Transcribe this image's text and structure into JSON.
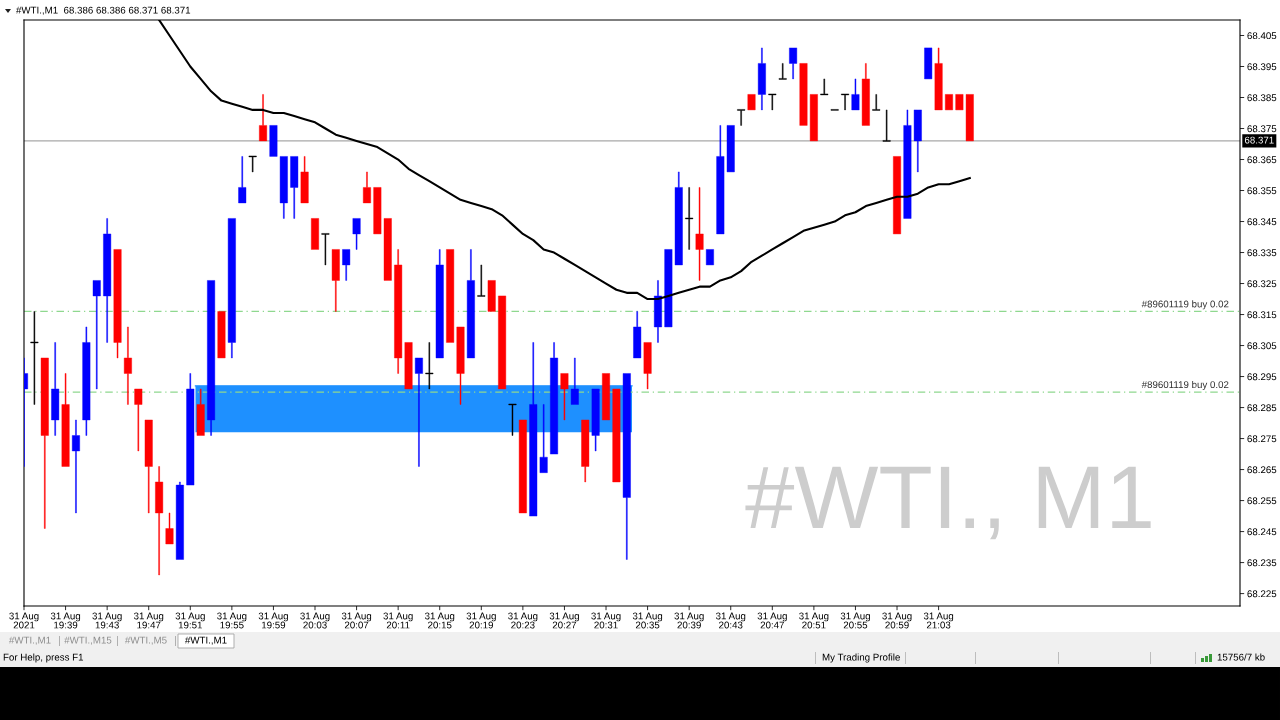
{
  "chart_data": {
    "type": "candlestick",
    "title": "#WTI.,M1  68.386 68.386 68.371 68.371",
    "x": [
      "2021-08-31T19:35",
      "2021-08-31T19:36",
      "2021-08-31T19:37",
      "2021-08-31T19:38",
      "2021-08-31T19:39",
      "2021-08-31T19:40",
      "2021-08-31T19:41",
      "2021-08-31T19:42",
      "2021-08-31T19:43",
      "2021-08-31T19:44",
      "2021-08-31T19:45",
      "2021-08-31T19:46",
      "2021-08-31T19:47",
      "2021-08-31T19:48",
      "2021-08-31T19:49",
      "2021-08-31T19:50",
      "2021-08-31T19:51",
      "2021-08-31T19:52",
      "2021-08-31T19:53",
      "2021-08-31T19:54",
      "2021-08-31T19:55",
      "2021-08-31T19:56",
      "2021-08-31T19:57",
      "2021-08-31T19:58",
      "2021-08-31T19:59",
      "2021-08-31T20:00",
      "2021-08-31T20:01",
      "2021-08-31T20:02",
      "2021-08-31T20:03",
      "2021-08-31T20:04",
      "2021-08-31T20:05",
      "2021-08-31T20:06",
      "2021-08-31T20:07",
      "2021-08-31T20:08",
      "2021-08-31T20:09",
      "2021-08-31T20:10",
      "2021-08-31T20:11",
      "2021-08-31T20:12",
      "2021-08-31T20:13",
      "2021-08-31T20:14",
      "2021-08-31T20:15",
      "2021-08-31T20:16",
      "2021-08-31T20:17",
      "2021-08-31T20:18",
      "2021-08-31T20:19",
      "2021-08-31T20:20",
      "2021-08-31T20:21",
      "2021-08-31T20:22",
      "2021-08-31T20:23",
      "2021-08-31T20:24",
      "2021-08-31T20:25",
      "2021-08-31T20:26",
      "2021-08-31T20:27",
      "2021-08-31T20:28",
      "2021-08-31T20:29",
      "2021-08-31T20:30",
      "2021-08-31T20:31",
      "2021-08-31T20:32",
      "2021-08-31T20:33",
      "2021-08-31T20:34",
      "2021-08-31T20:35",
      "2021-08-31T20:36",
      "2021-08-31T20:37",
      "2021-08-31T20:38",
      "2021-08-31T20:39",
      "2021-08-31T20:40",
      "2021-08-31T20:41",
      "2021-08-31T20:42",
      "2021-08-31T20:43",
      "2021-08-31T20:44",
      "2021-08-31T20:45",
      "2021-08-31T20:46",
      "2021-08-31T20:47",
      "2021-08-31T20:48",
      "2021-08-31T20:49",
      "2021-08-31T20:50",
      "2021-08-31T20:51",
      "2021-08-31T20:52",
      "2021-08-31T20:53",
      "2021-08-31T20:54",
      "2021-08-31T20:55",
      "2021-08-31T20:56",
      "2021-08-31T20:57",
      "2021-08-31T20:58",
      "2021-08-31T20:59",
      "2021-08-31T21:00",
      "2021-08-31T21:01",
      "2021-08-31T21:02",
      "2021-08-31T21:03",
      "2021-08-31T21:04",
      "2021-08-31T21:05",
      "2021-08-31T21:06"
    ],
    "ohlc": [
      [
        68.291,
        68.301,
        68.266,
        68.296
      ],
      [
        68.306,
        68.316,
        68.286,
        68.306
      ],
      [
        68.301,
        68.301,
        68.246,
        68.276
      ],
      [
        68.281,
        68.306,
        68.276,
        68.291
      ],
      [
        68.286,
        68.296,
        68.266,
        68.266
      ],
      [
        68.271,
        68.281,
        68.251,
        68.276
      ],
      [
        68.281,
        68.311,
        68.276,
        68.306
      ],
      [
        68.321,
        68.326,
        68.291,
        68.326
      ],
      [
        68.321,
        68.346,
        68.306,
        68.341
      ],
      [
        68.336,
        68.336,
        68.301,
        68.306
      ],
      [
        68.301,
        68.311,
        68.286,
        68.296
      ],
      [
        68.291,
        68.291,
        68.271,
        68.286
      ],
      [
        68.281,
        68.281,
        68.251,
        68.266
      ],
      [
        68.261,
        68.266,
        68.231,
        68.251
      ],
      [
        68.246,
        68.251,
        68.241,
        68.241
      ],
      [
        68.236,
        68.261,
        68.236,
        68.26
      ],
      [
        68.26,
        68.296,
        68.26,
        68.291
      ],
      [
        68.286,
        68.291,
        68.276,
        68.276
      ],
      [
        68.281,
        68.326,
        68.276,
        68.326
      ],
      [
        68.316,
        68.316,
        68.301,
        68.301
      ],
      [
        68.306,
        68.346,
        68.301,
        68.346
      ],
      [
        68.351,
        68.366,
        68.351,
        68.356
      ],
      [
        68.366,
        68.366,
        68.361,
        68.366
      ],
      [
        68.376,
        68.386,
        68.371,
        68.371
      ],
      [
        68.366,
        68.376,
        68.366,
        68.376
      ],
      [
        68.351,
        68.366,
        68.346,
        68.366
      ],
      [
        68.356,
        68.366,
        68.346,
        68.366
      ],
      [
        68.361,
        68.366,
        68.351,
        68.351
      ],
      [
        68.346,
        68.346,
        68.336,
        68.336
      ],
      [
        68.341,
        68.341,
        68.331,
        68.341
      ],
      [
        68.336,
        68.336,
        68.316,
        68.326
      ],
      [
        68.331,
        68.336,
        68.326,
        68.336
      ],
      [
        68.341,
        68.346,
        68.336,
        68.346
      ],
      [
        68.356,
        68.361,
        68.351,
        68.351
      ],
      [
        68.356,
        68.356,
        68.341,
        68.341
      ],
      [
        68.346,
        68.346,
        68.326,
        68.326
      ],
      [
        68.331,
        68.336,
        68.296,
        68.301
      ],
      [
        68.306,
        68.306,
        68.291,
        68.291
      ],
      [
        68.296,
        68.301,
        68.266,
        68.301
      ],
      [
        68.296,
        68.306,
        68.291,
        68.296
      ],
      [
        68.301,
        68.336,
        68.301,
        68.331
      ],
      [
        68.336,
        68.336,
        68.306,
        68.306
      ],
      [
        68.311,
        68.311,
        68.286,
        68.296
      ],
      [
        68.301,
        68.336,
        68.301,
        68.326
      ],
      [
        68.321,
        68.331,
        68.321,
        68.321
      ],
      [
        68.326,
        68.326,
        68.316,
        68.316
      ],
      [
        68.321,
        68.321,
        68.291,
        68.291
      ],
      [
        68.286,
        68.286,
        68.276,
        68.286
      ],
      [
        68.281,
        68.281,
        68.251,
        68.251
      ],
      [
        68.25,
        68.306,
        68.25,
        68.286
      ],
      [
        68.264,
        68.286,
        68.264,
        68.269
      ],
      [
        68.27,
        68.306,
        68.27,
        68.301
      ],
      [
        68.296,
        68.296,
        68.281,
        68.291
      ],
      [
        68.286,
        68.301,
        68.286,
        68.291
      ],
      [
        68.281,
        68.281,
        68.261,
        68.266
      ],
      [
        68.276,
        68.291,
        68.271,
        68.291
      ],
      [
        68.296,
        68.296,
        68.281,
        68.281
      ],
      [
        68.291,
        68.291,
        68.261,
        68.261
      ],
      [
        68.256,
        68.296,
        68.236,
        68.296
      ],
      [
        68.301,
        68.316,
        68.301,
        68.311
      ],
      [
        68.306,
        68.306,
        68.291,
        68.296
      ],
      [
        68.311,
        68.326,
        68.306,
        68.321
      ],
      [
        68.311,
        68.336,
        68.311,
        68.336
      ],
      [
        68.331,
        68.361,
        68.331,
        68.356
      ],
      [
        68.346,
        68.356,
        68.336,
        68.346
      ],
      [
        68.341,
        68.356,
        68.326,
        68.336
      ],
      [
        68.331,
        68.336,
        68.331,
        68.336
      ],
      [
        68.341,
        68.376,
        68.341,
        68.366
      ],
      [
        68.361,
        68.376,
        68.361,
        68.376
      ],
      [
        68.381,
        68.381,
        68.376,
        68.381
      ],
      [
        68.386,
        68.386,
        68.381,
        68.381
      ],
      [
        68.386,
        68.401,
        68.381,
        68.396
      ],
      [
        68.386,
        68.386,
        68.381,
        68.386
      ],
      [
        68.391,
        68.396,
        68.391,
        68.391
      ],
      [
        68.396,
        68.401,
        68.391,
        68.401
      ],
      [
        68.396,
        68.396,
        68.376,
        68.376
      ],
      [
        68.386,
        68.386,
        68.371,
        68.371
      ],
      [
        68.386,
        68.391,
        68.386,
        68.386
      ],
      [
        68.381,
        68.381,
        68.381,
        68.381
      ],
      [
        68.386,
        68.386,
        68.381,
        68.386
      ],
      [
        68.381,
        68.391,
        68.381,
        68.386
      ],
      [
        68.391,
        68.396,
        68.376,
        68.376
      ],
      [
        68.381,
        68.386,
        68.381,
        68.381
      ],
      [
        68.371,
        68.381,
        68.371,
        68.371
      ],
      [
        68.366,
        68.366,
        68.341,
        68.341
      ],
      [
        68.346,
        68.381,
        68.346,
        68.376
      ],
      [
        68.371,
        68.381,
        68.361,
        68.381
      ],
      [
        68.391,
        68.401,
        68.391,
        68.401
      ],
      [
        68.396,
        68.401,
        68.381,
        68.381
      ],
      [
        68.386,
        68.386,
        68.381,
        68.381
      ],
      [
        68.386,
        68.386,
        68.381,
        68.381
      ],
      [
        68.386,
        68.386,
        68.371,
        68.371
      ]
    ],
    "colors": [
      "#0000ff",
      "#000000",
      "#ff0000",
      "#0000ff",
      "#ff0000",
      "#0000ff",
      "#0000ff",
      "#0000ff",
      "#0000ff",
      "#ff0000",
      "#ff0000",
      "#ff0000",
      "#ff0000",
      "#ff0000",
      "#ff0000",
      "#0000ff",
      "#0000ff",
      "#ff0000",
      "#0000ff",
      "#ff0000",
      "#0000ff",
      "#0000ff",
      "#000000",
      "#ff0000",
      "#0000ff",
      "#0000ff",
      "#0000ff",
      "#ff0000",
      "#ff0000",
      "#000000",
      "#ff0000",
      "#0000ff",
      "#0000ff",
      "#ff0000",
      "#ff0000",
      "#ff0000",
      "#ff0000",
      "#ff0000",
      "#0000ff",
      "#000000",
      "#0000ff",
      "#ff0000",
      "#ff0000",
      "#0000ff",
      "#000000",
      "#ff0000",
      "#ff0000",
      "#000000",
      "#ff0000",
      "#0000ff",
      "#0000ff",
      "#0000ff",
      "#ff0000",
      "#0000ff",
      "#ff0000",
      "#0000ff",
      "#ff0000",
      "#ff0000",
      "#0000ff",
      "#0000ff",
      "#ff0000",
      "#0000ff",
      "#0000ff",
      "#0000ff",
      "#000000",
      "#ff0000",
      "#0000ff",
      "#0000ff",
      "#0000ff",
      "#000000",
      "#ff0000",
      "#0000ff",
      "#000000",
      "#000000",
      "#0000ff",
      "#ff0000",
      "#ff0000",
      "#000000",
      "#000000",
      "#000000",
      "#0000ff",
      "#ff0000",
      "#000000",
      "#000000",
      "#ff0000",
      "#0000ff",
      "#0000ff",
      "#0000ff",
      "#ff0000",
      "#ff0000",
      "#ff0000",
      "#ff0000"
    ],
    "series": [
      {
        "type": "line",
        "color": "#000000",
        "x": [
          "2021-08-31T19:48",
          "2021-08-31T19:49",
          "2021-08-31T19:50",
          "2021-08-31T19:51",
          "2021-08-31T19:52",
          "2021-08-31T19:53",
          "2021-08-31T19:54",
          "2021-08-31T19:55",
          "2021-08-31T19:56",
          "2021-08-31T19:57",
          "2021-08-31T19:58",
          "2021-08-31T19:59",
          "2021-08-31T20:00",
          "2021-08-31T20:01",
          "2021-08-31T20:02",
          "2021-08-31T20:03",
          "2021-08-31T20:04",
          "2021-08-31T20:05",
          "2021-08-31T20:06",
          "2021-08-31T20:07",
          "2021-08-31T20:08",
          "2021-08-31T20:09",
          "2021-08-31T20:10",
          "2021-08-31T20:11",
          "2021-08-31T20:12",
          "2021-08-31T20:13",
          "2021-08-31T20:14",
          "2021-08-31T20:15",
          "2021-08-31T20:16",
          "2021-08-31T20:17",
          "2021-08-31T20:18",
          "2021-08-31T20:19",
          "2021-08-31T20:20",
          "2021-08-31T20:21",
          "2021-08-31T20:22",
          "2021-08-31T20:23",
          "2021-08-31T20:24",
          "2021-08-31T20:25",
          "2021-08-31T20:26",
          "2021-08-31T20:27",
          "2021-08-31T20:28",
          "2021-08-31T20:29",
          "2021-08-31T20:30",
          "2021-08-31T20:31",
          "2021-08-31T20:32",
          "2021-08-31T20:33",
          "2021-08-31T20:34",
          "2021-08-31T20:35",
          "2021-08-31T20:36",
          "2021-08-31T20:37",
          "2021-08-31T20:38",
          "2021-08-31T20:39",
          "2021-08-31T20:40",
          "2021-08-31T20:41",
          "2021-08-31T20:42",
          "2021-08-31T20:43",
          "2021-08-31T20:44",
          "2021-08-31T20:45",
          "2021-08-31T20:46",
          "2021-08-31T20:47",
          "2021-08-31T20:48",
          "2021-08-31T20:49",
          "2021-08-31T20:50",
          "2021-08-31T20:51",
          "2021-08-31T20:52",
          "2021-08-31T20:53",
          "2021-08-31T20:54",
          "2021-08-31T20:55",
          "2021-08-31T20:56",
          "2021-08-31T20:57",
          "2021-08-31T20:58",
          "2021-08-31T20:59",
          "2021-08-31T21:00",
          "2021-08-31T21:01",
          "2021-08-31T21:02",
          "2021-08-31T21:03",
          "2021-08-31T21:04",
          "2021-08-31T21:05",
          "2021-08-31T21:06"
        ],
        "values": [
          68.41,
          68.405,
          68.4,
          68.395,
          68.391,
          68.387,
          68.384,
          68.383,
          68.382,
          68.381,
          68.381,
          68.38,
          68.38,
          68.379,
          68.378,
          68.377,
          68.375,
          68.373,
          68.372,
          68.371,
          68.37,
          68.369,
          68.367,
          68.365,
          68.362,
          68.36,
          68.358,
          68.356,
          68.354,
          68.352,
          68.351,
          68.35,
          68.349,
          68.347,
          68.344,
          68.341,
          68.339,
          68.336,
          68.335,
          68.333,
          68.331,
          68.329,
          68.327,
          68.325,
          68.323,
          68.322,
          68.322,
          68.32,
          68.32,
          68.321,
          68.322,
          68.323,
          68.324,
          68.324,
          68.326,
          68.327,
          68.329,
          68.332,
          68.334,
          68.336,
          68.338,
          68.34,
          68.342,
          68.343,
          68.344,
          68.345,
          68.347,
          68.348,
          68.35,
          68.351,
          68.352,
          68.353,
          68.353,
          68.354,
          68.356,
          68.357,
          68.357,
          68.358,
          68.359
        ]
      },
      {
        "type": "line",
        "color": "#1e90ff",
        "x": [
          "2021-08-31T19:51:30",
          "2021-08-31T20:11:30",
          "2021-08-31T20:33:30"
        ],
        "values": [
          68.292,
          68.292,
          68.292
        ],
        "lower": [
          68.277,
          68.277,
          68.277
        ],
        "upper": [
          68.292,
          68.292,
          68.292
        ]
      }
    ],
    "xlim": [
      "2021-08-31T19:35",
      "2021-08-31T21:32"
    ],
    "xticks": [
      {
        "value": "2021-08-31T19:35",
        "label": "31 Aug 2021"
      },
      {
        "value": "2021-08-31T19:39",
        "label": "31 Aug 19:39"
      },
      {
        "value": "2021-08-31T19:43",
        "label": "31 Aug 19:43"
      },
      {
        "value": "2021-08-31T19:47",
        "label": "31 Aug 19:47"
      },
      {
        "value": "2021-08-31T19:51",
        "label": "31 Aug 19:51"
      },
      {
        "value": "2021-08-31T19:55",
        "label": "31 Aug 19:55"
      },
      {
        "value": "2021-08-31T19:59",
        "label": "31 Aug 19:59"
      },
      {
        "value": "2021-08-31T20:03",
        "label": "31 Aug 20:03"
      },
      {
        "value": "2021-08-31T20:07",
        "label": "31 Aug 20:07"
      },
      {
        "value": "2021-08-31T20:11",
        "label": "31 Aug 20:11"
      },
      {
        "value": "2021-08-31T20:15",
        "label": "31 Aug 20:15"
      },
      {
        "value": "2021-08-31T20:19",
        "label": "31 Aug 20:19"
      },
      {
        "value": "2021-08-31T20:23",
        "label": "31 Aug 20:23"
      },
      {
        "value": "2021-08-31T20:27",
        "label": "31 Aug 20:27"
      },
      {
        "value": "2021-08-31T20:31",
        "label": "31 Aug 20:31"
      },
      {
        "value": "2021-08-31T20:35",
        "label": "31 Aug 20:35"
      },
      {
        "value": "2021-08-31T20:39",
        "label": "31 Aug 20:39"
      },
      {
        "value": "2021-08-31T20:43",
        "label": "31 Aug 20:43"
      },
      {
        "value": "2021-08-31T20:47",
        "label": "31 Aug 20:47"
      },
      {
        "value": "2021-08-31T20:51",
        "label": "31 Aug 20:51"
      },
      {
        "value": "2021-08-31T20:55",
        "label": "31 Aug 20:55"
      },
      {
        "value": "2021-08-31T20:59",
        "label": "31 Aug 20:59"
      },
      {
        "value": "2021-08-31T21:03",
        "label": "31 Aug 21:03"
      }
    ],
    "ylim": [
      68.221,
      68.41
    ],
    "yticks": [
      68.225,
      68.235,
      68.245,
      68.255,
      68.265,
      68.275,
      68.285,
      68.295,
      68.305,
      68.315,
      68.325,
      68.335,
      68.345,
      68.355,
      68.365,
      68.375,
      68.385,
      68.395,
      68.405
    ],
    "ref_lines": [
      {
        "axis": "y",
        "value": 68.371,
        "label": "68.371",
        "color": "#a8a8a8",
        "line_style": "solid"
      },
      {
        "axis": "y",
        "value": 68.316,
        "label": "#89601119 buy 0.02",
        "color": "#8fd88f",
        "line_style": "dashed"
      },
      {
        "axis": "y",
        "value": 68.29,
        "label": "#89601119 buy 0.02",
        "color": "#8fd88f",
        "line_style": "dashed"
      }
    ],
    "annotations": [
      "#WTI., M1",
      "#WTI.,M1",
      "#WTI.,M15",
      "#WTI.,M5",
      "#WTI.,M1",
      "For Help, press F1",
      "My Trading Profile",
      "15756/7 kb"
    ]
  }
}
